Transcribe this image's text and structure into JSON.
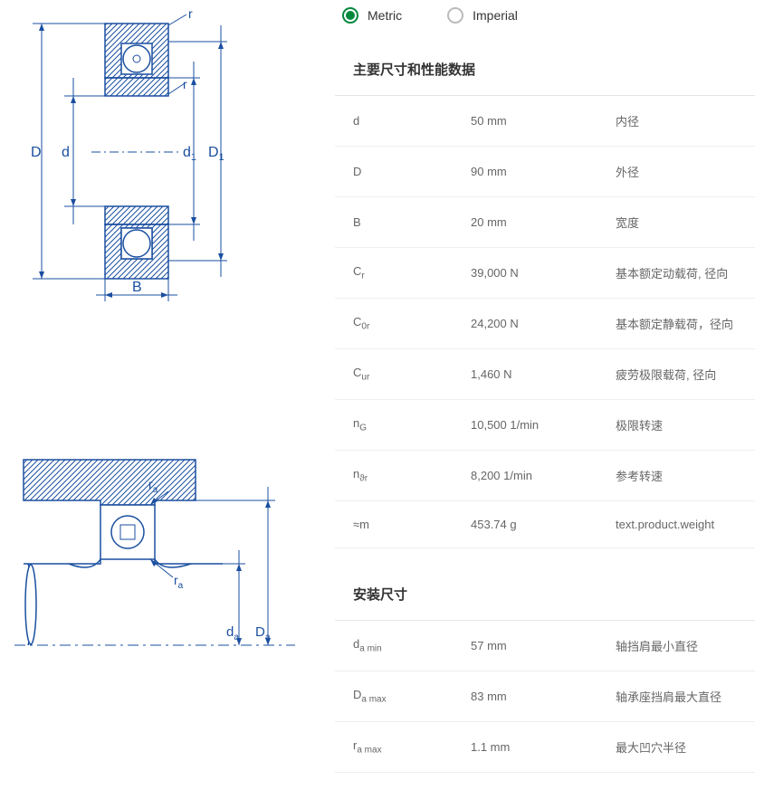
{
  "units": {
    "metric_label": "Metric",
    "imperial_label": "Imperial",
    "selected": "metric"
  },
  "sections": [
    {
      "title": "主要尺寸和性能数据",
      "rows": [
        {
          "symbol": "d",
          "sub": "",
          "value": "50 mm",
          "desc": "内径"
        },
        {
          "symbol": "D",
          "sub": "",
          "value": "90 mm",
          "desc": "外径"
        },
        {
          "symbol": "B",
          "sub": "",
          "value": "20 mm",
          "desc": "宽度"
        },
        {
          "symbol": "C",
          "sub": "r",
          "value": "39,000 N",
          "desc": "基本额定动载荷, 径向"
        },
        {
          "symbol": "C",
          "sub": "0r",
          "value": "24,200 N",
          "desc": "基本额定静载荷，径向"
        },
        {
          "symbol": "C",
          "sub": "ur",
          "value": "1,460 N",
          "desc": "疲劳极限载荷, 径向"
        },
        {
          "symbol": "n",
          "sub": "G",
          "value": "10,500 1/min",
          "desc": "极限转速"
        },
        {
          "symbol": "n",
          "sub": "ϑr",
          "value": "8,200 1/min",
          "desc": "参考转速"
        },
        {
          "symbol": "≈m",
          "sub": "",
          "value": "453.74 g",
          "desc": "text.product.weight"
        }
      ]
    },
    {
      "title": "安装尺寸",
      "rows": [
        {
          "symbol": "d",
          "sub": "a min",
          "value": "57 mm",
          "desc": "轴挡肩最小直径"
        },
        {
          "symbol": "D",
          "sub": "a max",
          "value": "83 mm",
          "desc": "轴承座挡肩最大直径"
        },
        {
          "symbol": "r",
          "sub": "a max",
          "value": "1.1 mm",
          "desc": "最大凹穴半径"
        }
      ]
    }
  ],
  "diagram_labels": {
    "top": {
      "D": "D",
      "d": "d",
      "d1": "d",
      "d1_sub": "1",
      "D1": "D",
      "D1_sub": "1",
      "B": "B",
      "r": "r"
    },
    "bottom": {
      "ra": "r",
      "ra_sub": "a",
      "da": "d",
      "da_sub": "a",
      "Da": "D",
      "Da_sub": "a"
    }
  },
  "colors": {
    "line": "#1a4fa0",
    "hatch": "#1a4fa0",
    "accent": "#00893d",
    "text": "#555555",
    "divider": "#eeeeee"
  }
}
